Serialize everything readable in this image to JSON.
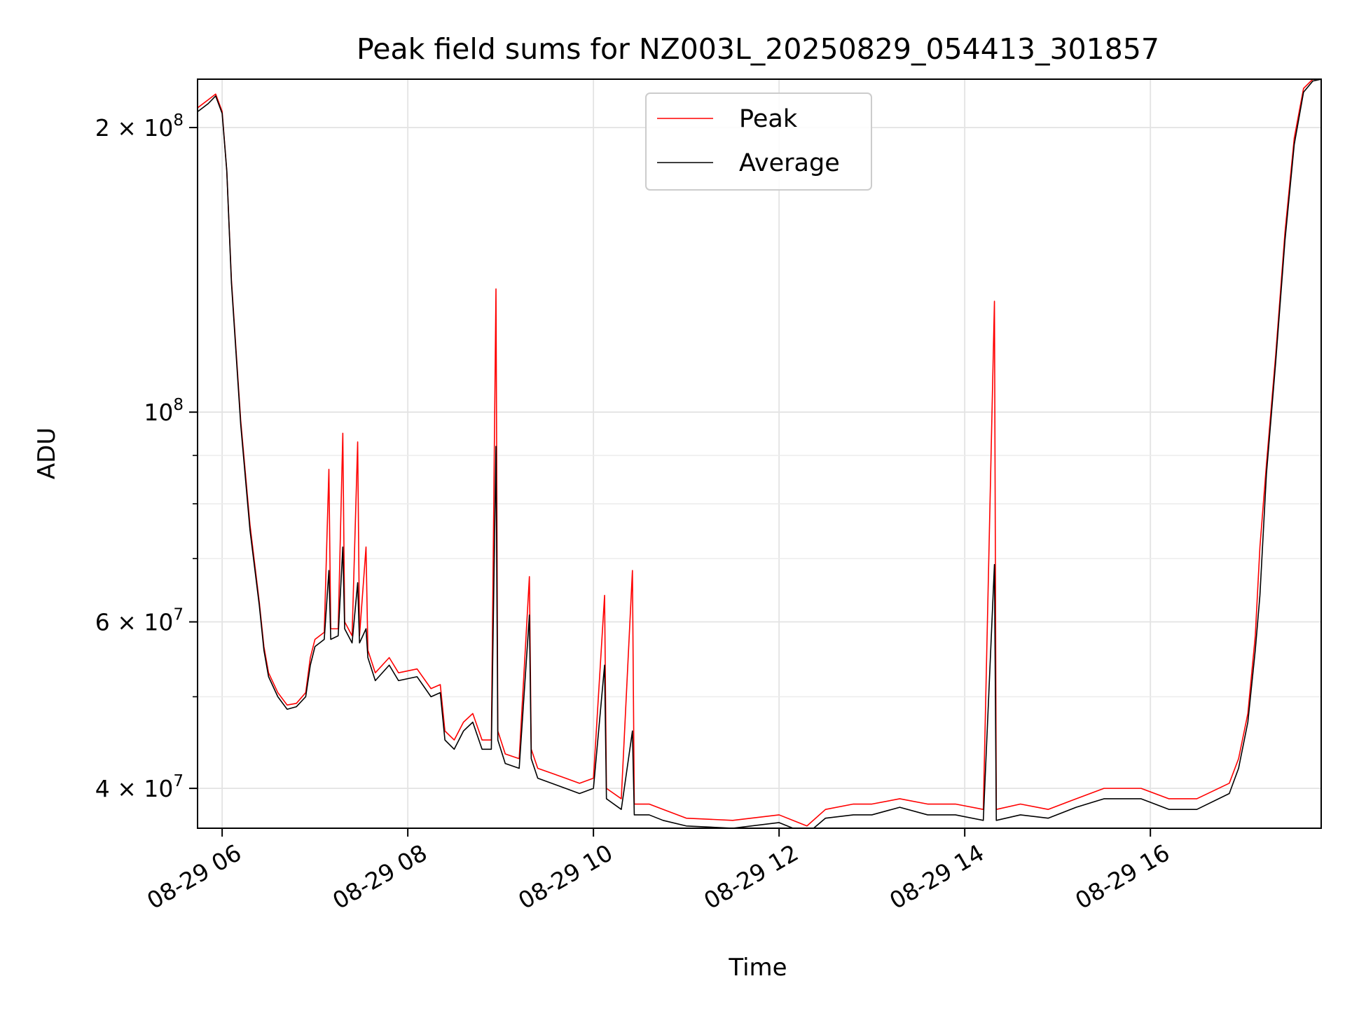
{
  "chart_data": {
    "type": "line",
    "title": "Peak field sums for NZ003L_20250829_054413_301857",
    "xlabel": "Time",
    "ylabel": "ADU",
    "x_unit": "hours",
    "xlim": [
      5.735,
      17.84
    ],
    "ylim": [
      36300000,
      225000000
    ],
    "yscale": "log",
    "grid": true,
    "legend_position": "top-center",
    "x_ticks": [
      {
        "value": 6,
        "label": "08-29 06"
      },
      {
        "value": 8,
        "label": "08-29 08"
      },
      {
        "value": 10,
        "label": "08-29 10"
      },
      {
        "value": 12,
        "label": "08-29 12"
      },
      {
        "value": 14,
        "label": "08-29 14"
      },
      {
        "value": 16,
        "label": "08-29 16"
      }
    ],
    "y_ticks": [
      {
        "value": 40000000,
        "label": "4 × 10⁷",
        "base": "4 × 10",
        "exp": "7"
      },
      {
        "value": 60000000,
        "label": "6 × 10⁷",
        "base": "6 × 10",
        "exp": "7"
      },
      {
        "value": 100000000,
        "label": "10⁸",
        "base": "10",
        "exp": "8"
      },
      {
        "value": 200000000,
        "label": "2 × 10⁸",
        "base": "2 × 10",
        "exp": "8"
      }
    ],
    "y_minor_ticks": [
      50000000,
      70000000,
      80000000,
      90000000
    ],
    "series": [
      {
        "name": "Peak",
        "color": "#ff0000",
        "points": [
          [
            5.74,
            210000000.0
          ],
          [
            5.85,
            214000000.0
          ],
          [
            5.93,
            217000000.0
          ],
          [
            6.0,
            208000000.0
          ],
          [
            6.05,
            180000000.0
          ],
          [
            6.1,
            138000000.0
          ],
          [
            6.2,
            98000000.0
          ],
          [
            6.3,
            76000000.0
          ],
          [
            6.4,
            63000000.0
          ],
          [
            6.45,
            56500000.0
          ],
          [
            6.5,
            53000000.0
          ],
          [
            6.6,
            50500000.0
          ],
          [
            6.7,
            49000000.0
          ],
          [
            6.8,
            49200000.0
          ],
          [
            6.9,
            50500000.0
          ],
          [
            6.95,
            55000000.0
          ],
          [
            7.0,
            57500000.0
          ],
          [
            7.1,
            58500000.0
          ],
          [
            7.15,
            87000000.0
          ],
          [
            7.17,
            59000000.0
          ],
          [
            7.25,
            59000000.0
          ],
          [
            7.3,
            95000000.0
          ],
          [
            7.32,
            60000000.0
          ],
          [
            7.4,
            58000000.0
          ],
          [
            7.46,
            93000000.0
          ],
          [
            7.48,
            58000000.0
          ],
          [
            7.55,
            72000000.0
          ],
          [
            7.57,
            56000000.0
          ],
          [
            7.65,
            53000000.0
          ],
          [
            7.8,
            55000000.0
          ],
          [
            7.9,
            53000000.0
          ],
          [
            8.1,
            53500000.0
          ],
          [
            8.25,
            51000000.0
          ],
          [
            8.35,
            51500000.0
          ],
          [
            8.4,
            46000000.0
          ],
          [
            8.5,
            45000000.0
          ],
          [
            8.6,
            47000000.0
          ],
          [
            8.7,
            48000000.0
          ],
          [
            8.8,
            45000000.0
          ],
          [
            8.9,
            45000000.0
          ],
          [
            8.95,
            135000000.0
          ],
          [
            8.97,
            46000000.0
          ],
          [
            9.05,
            43500000.0
          ],
          [
            9.2,
            43000000.0
          ],
          [
            9.31,
            67000000.0
          ],
          [
            9.33,
            44000000.0
          ],
          [
            9.4,
            42000000.0
          ],
          [
            9.55,
            41500000.0
          ],
          [
            9.7,
            41000000.0
          ],
          [
            9.85,
            40500000.0
          ],
          [
            10.0,
            41000000.0
          ],
          [
            10.12,
            64000000.0
          ],
          [
            10.14,
            40000000.0
          ],
          [
            10.3,
            39000000.0
          ],
          [
            10.42,
            68000000.0
          ],
          [
            10.44,
            38500000.0
          ],
          [
            10.6,
            38500000.0
          ],
          [
            10.75,
            38000000.0
          ],
          [
            11.0,
            37200000.0
          ],
          [
            11.5,
            37000000.0
          ],
          [
            12.0,
            37500000.0
          ],
          [
            12.3,
            36500000.0
          ],
          [
            12.5,
            38000000.0
          ],
          [
            12.8,
            38500000.0
          ],
          [
            13.0,
            38500000.0
          ],
          [
            13.3,
            39000000.0
          ],
          [
            13.6,
            38500000.0
          ],
          [
            13.9,
            38500000.0
          ],
          [
            14.2,
            38000000.0
          ],
          [
            14.32,
            131000000.0
          ],
          [
            14.34,
            38000000.0
          ],
          [
            14.6,
            38500000.0
          ],
          [
            14.9,
            38000000.0
          ],
          [
            15.2,
            39000000.0
          ],
          [
            15.5,
            40000000.0
          ],
          [
            15.9,
            40000000.0
          ],
          [
            16.2,
            39000000.0
          ],
          [
            16.5,
            39000000.0
          ],
          [
            16.85,
            40500000.0
          ],
          [
            16.95,
            43000000.0
          ],
          [
            17.05,
            48000000.0
          ],
          [
            17.13,
            58000000.0
          ],
          [
            17.18,
            72000000.0
          ],
          [
            17.25,
            88000000.0
          ],
          [
            17.35,
            115000000.0
          ],
          [
            17.45,
            155000000.0
          ],
          [
            17.55,
            195000000.0
          ],
          [
            17.65,
            220000000.0
          ],
          [
            17.75,
            225000000.0
          ],
          [
            17.84,
            225000000.0
          ]
        ]
      },
      {
        "name": "Average",
        "color": "#000000",
        "points": [
          [
            5.74,
            208000000.0
          ],
          [
            5.85,
            212000000.0
          ],
          [
            5.93,
            216000000.0
          ],
          [
            6.0,
            207000000.0
          ],
          [
            6.05,
            180000000.0
          ],
          [
            6.1,
            137000000.0
          ],
          [
            6.2,
            97000000.0
          ],
          [
            6.3,
            75000000.0
          ],
          [
            6.4,
            62500000.0
          ],
          [
            6.45,
            56000000.0
          ],
          [
            6.5,
            52500000.0
          ],
          [
            6.6,
            50000000.0
          ],
          [
            6.7,
            48500000.0
          ],
          [
            6.8,
            48800000.0
          ],
          [
            6.9,
            50000000.0
          ],
          [
            6.95,
            54000000.0
          ],
          [
            7.0,
            56500000.0
          ],
          [
            7.1,
            57500000.0
          ],
          [
            7.15,
            68000000.0
          ],
          [
            7.17,
            57500000.0
          ],
          [
            7.25,
            58000000.0
          ],
          [
            7.3,
            72000000.0
          ],
          [
            7.32,
            59000000.0
          ],
          [
            7.4,
            57000000.0
          ],
          [
            7.46,
            66000000.0
          ],
          [
            7.48,
            57000000.0
          ],
          [
            7.55,
            59000000.0
          ],
          [
            7.57,
            55000000.0
          ],
          [
            7.65,
            52000000.0
          ],
          [
            7.8,
            54000000.0
          ],
          [
            7.9,
            52000000.0
          ],
          [
            8.1,
            52500000.0
          ],
          [
            8.25,
            50000000.0
          ],
          [
            8.35,
            50500000.0
          ],
          [
            8.4,
            45000000.0
          ],
          [
            8.5,
            44000000.0
          ],
          [
            8.6,
            46000000.0
          ],
          [
            8.7,
            47000000.0
          ],
          [
            8.8,
            44000000.0
          ],
          [
            8.9,
            44000000.0
          ],
          [
            8.95,
            92000000.0
          ],
          [
            8.97,
            45000000.0
          ],
          [
            9.05,
            42500000.0
          ],
          [
            9.2,
            42000000.0
          ],
          [
            9.31,
            61000000.0
          ],
          [
            9.33,
            43000000.0
          ],
          [
            9.4,
            41000000.0
          ],
          [
            9.55,
            40500000.0
          ],
          [
            9.7,
            40000000.0
          ],
          [
            9.85,
            39500000.0
          ],
          [
            10.0,
            40000000.0
          ],
          [
            10.12,
            54000000.0
          ],
          [
            10.14,
            39000000.0
          ],
          [
            10.3,
            38000000.0
          ],
          [
            10.42,
            46000000.0
          ],
          [
            10.44,
            37500000.0
          ],
          [
            10.6,
            37500000.0
          ],
          [
            10.75,
            37000000.0
          ],
          [
            11.0,
            36500000.0
          ],
          [
            11.5,
            36300000.0
          ],
          [
            12.0,
            36800000.0
          ],
          [
            12.3,
            35800000.0
          ],
          [
            12.5,
            37200000.0
          ],
          [
            12.8,
            37500000.0
          ],
          [
            13.0,
            37500000.0
          ],
          [
            13.3,
            38200000.0
          ],
          [
            13.6,
            37500000.0
          ],
          [
            13.9,
            37500000.0
          ],
          [
            14.2,
            37000000.0
          ],
          [
            14.32,
            69000000.0
          ],
          [
            14.34,
            37000000.0
          ],
          [
            14.6,
            37500000.0
          ],
          [
            14.9,
            37200000.0
          ],
          [
            15.2,
            38200000.0
          ],
          [
            15.5,
            39000000.0
          ],
          [
            15.9,
            39000000.0
          ],
          [
            16.2,
            38000000.0
          ],
          [
            16.5,
            38000000.0
          ],
          [
            16.85,
            39500000.0
          ],
          [
            16.95,
            42000000.0
          ],
          [
            17.05,
            47000000.0
          ],
          [
            17.13,
            56000000.0
          ],
          [
            17.18,
            64000000.0
          ],
          [
            17.25,
            86000000.0
          ],
          [
            17.35,
            113000000.0
          ],
          [
            17.45,
            152000000.0
          ],
          [
            17.55,
            192000000.0
          ],
          [
            17.65,
            218000000.0
          ],
          [
            17.75,
            224000000.0
          ],
          [
            17.84,
            225000000.0
          ]
        ]
      }
    ]
  }
}
